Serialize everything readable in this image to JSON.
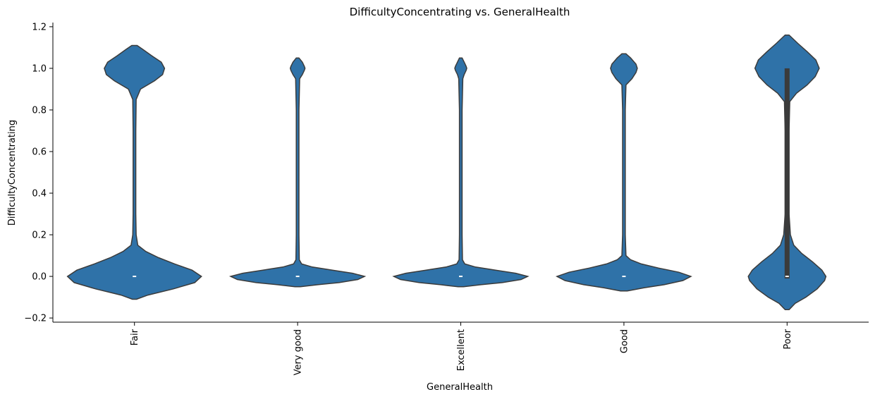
{
  "chart_data": {
    "type": "violin",
    "title": "DifficultyConcentrating vs. GeneralHealth",
    "xlabel": "GeneralHealth",
    "ylabel": "DifficultyConcentrating",
    "ylim": [
      -0.22,
      1.22
    ],
    "y_ticks": [
      -0.2,
      0.0,
      0.2,
      0.4,
      0.6,
      0.8,
      1.0,
      1.2
    ],
    "y_tick_labels": [
      "−0.2",
      "0.0",
      "0.2",
      "0.4",
      "0.6",
      "0.8",
      "1.0",
      "1.2"
    ],
    "categories": [
      "Fair",
      "Very good",
      "Excellent",
      "Good",
      "Poor"
    ],
    "color": "#2f72a8",
    "edge_color": "#3b3b3b",
    "grid": false,
    "legend": "none",
    "violins": [
      {
        "category": "Fair",
        "median": 0.0,
        "q1": 0.0,
        "q3": 0.0,
        "min": -0.11,
        "max": 1.11,
        "profile": [
          [
            -0.11,
            0.03
          ],
          [
            -0.09,
            0.2
          ],
          [
            -0.06,
            0.58
          ],
          [
            -0.03,
            0.9
          ],
          [
            0.0,
            1.0
          ],
          [
            0.03,
            0.86
          ],
          [
            0.06,
            0.6
          ],
          [
            0.09,
            0.36
          ],
          [
            0.12,
            0.17
          ],
          [
            0.15,
            0.05
          ],
          [
            0.2,
            0.025
          ],
          [
            0.3,
            0.02
          ],
          [
            0.5,
            0.02
          ],
          [
            0.7,
            0.02
          ],
          [
            0.85,
            0.025
          ],
          [
            0.9,
            0.09
          ],
          [
            0.94,
            0.3
          ],
          [
            0.97,
            0.42
          ],
          [
            1.0,
            0.45
          ],
          [
            1.03,
            0.4
          ],
          [
            1.06,
            0.26
          ],
          [
            1.09,
            0.13
          ],
          [
            1.11,
            0.04
          ]
        ]
      },
      {
        "category": "Very good",
        "median": 0.0,
        "q1": 0.0,
        "q3": 0.0,
        "min": -0.05,
        "max": 1.05,
        "profile": [
          [
            -0.05,
            0.04
          ],
          [
            -0.04,
            0.3
          ],
          [
            -0.03,
            0.62
          ],
          [
            -0.015,
            0.9
          ],
          [
            0.0,
            1.0
          ],
          [
            0.015,
            0.82
          ],
          [
            0.03,
            0.52
          ],
          [
            0.045,
            0.22
          ],
          [
            0.06,
            0.06
          ],
          [
            0.08,
            0.025
          ],
          [
            0.2,
            0.02
          ],
          [
            0.5,
            0.02
          ],
          [
            0.8,
            0.02
          ],
          [
            0.95,
            0.03
          ],
          [
            0.97,
            0.07
          ],
          [
            0.99,
            0.1
          ],
          [
            1.0,
            0.11
          ],
          [
            1.01,
            0.1
          ],
          [
            1.03,
            0.07
          ],
          [
            1.05,
            0.02
          ]
        ]
      },
      {
        "category": "Excellent",
        "median": 0.0,
        "q1": 0.0,
        "q3": 0.0,
        "min": -0.05,
        "max": 1.05,
        "profile": [
          [
            -0.05,
            0.04
          ],
          [
            -0.04,
            0.3
          ],
          [
            -0.03,
            0.62
          ],
          [
            -0.015,
            0.9
          ],
          [
            0.0,
            1.0
          ],
          [
            0.015,
            0.82
          ],
          [
            0.03,
            0.52
          ],
          [
            0.045,
            0.22
          ],
          [
            0.06,
            0.06
          ],
          [
            0.08,
            0.025
          ],
          [
            0.2,
            0.02
          ],
          [
            0.5,
            0.02
          ],
          [
            0.8,
            0.02
          ],
          [
            0.95,
            0.03
          ],
          [
            0.97,
            0.05
          ],
          [
            0.99,
            0.08
          ],
          [
            1.0,
            0.09
          ],
          [
            1.01,
            0.08
          ],
          [
            1.03,
            0.05
          ],
          [
            1.05,
            0.02
          ]
        ]
      },
      {
        "category": "Good",
        "median": 0.0,
        "q1": 0.0,
        "q3": 0.0,
        "min": -0.07,
        "max": 1.07,
        "profile": [
          [
            -0.07,
            0.05
          ],
          [
            -0.055,
            0.3
          ],
          [
            -0.04,
            0.6
          ],
          [
            -0.02,
            0.88
          ],
          [
            0.0,
            1.0
          ],
          [
            0.02,
            0.82
          ],
          [
            0.04,
            0.52
          ],
          [
            0.06,
            0.26
          ],
          [
            0.08,
            0.1
          ],
          [
            0.1,
            0.03
          ],
          [
            0.2,
            0.02
          ],
          [
            0.5,
            0.02
          ],
          [
            0.8,
            0.02
          ],
          [
            0.92,
            0.03
          ],
          [
            0.95,
            0.12
          ],
          [
            0.98,
            0.18
          ],
          [
            1.0,
            0.2
          ],
          [
            1.02,
            0.18
          ],
          [
            1.05,
            0.1
          ],
          [
            1.07,
            0.03
          ]
        ]
      },
      {
        "category": "Poor",
        "median": 0.0,
        "q1": 0.0,
        "q3": 1.0,
        "min": -0.16,
        "max": 1.16,
        "profile": [
          [
            -0.16,
            0.03
          ],
          [
            -0.13,
            0.12
          ],
          [
            -0.1,
            0.28
          ],
          [
            -0.06,
            0.45
          ],
          [
            -0.02,
            0.56
          ],
          [
            0.0,
            0.58
          ],
          [
            0.03,
            0.52
          ],
          [
            0.07,
            0.38
          ],
          [
            0.11,
            0.22
          ],
          [
            0.15,
            0.1
          ],
          [
            0.2,
            0.05
          ],
          [
            0.3,
            0.03
          ],
          [
            0.5,
            0.03
          ],
          [
            0.7,
            0.03
          ],
          [
            0.84,
            0.04
          ],
          [
            0.88,
            0.14
          ],
          [
            0.92,
            0.3
          ],
          [
            0.96,
            0.42
          ],
          [
            1.0,
            0.48
          ],
          [
            1.04,
            0.43
          ],
          [
            1.08,
            0.3
          ],
          [
            1.12,
            0.16
          ],
          [
            1.16,
            0.03
          ]
        ]
      }
    ]
  }
}
